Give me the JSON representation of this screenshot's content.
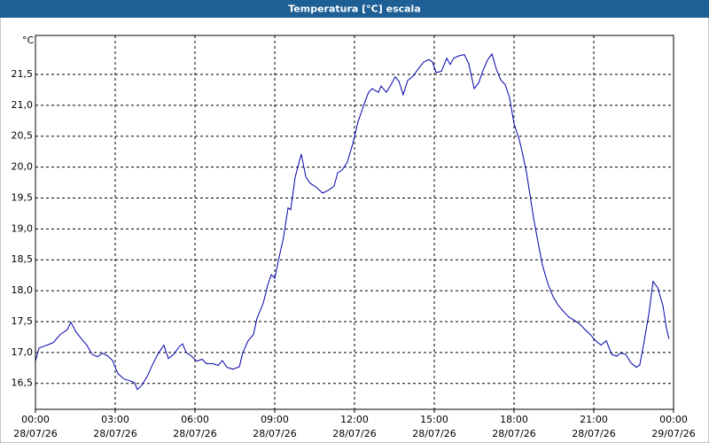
{
  "chart_data": {
    "type": "line",
    "title": "Temperatura [°C] escala",
    "y_unit": "°C",
    "x": [
      0,
      0.13,
      0.5,
      0.67,
      0.93,
      1.2,
      1.33,
      1.53,
      1.73,
      1.93,
      2.13,
      2.33,
      2.53,
      2.73,
      2.9,
      3.1,
      3.33,
      3.57,
      3.73,
      3.83,
      4.0,
      4.2,
      4.4,
      4.6,
      4.83,
      5.0,
      5.2,
      5.4,
      5.53,
      5.67,
      5.87,
      6.07,
      6.27,
      6.43,
      6.67,
      6.87,
      7.03,
      7.2,
      7.43,
      7.67,
      7.8,
      8.0,
      8.2,
      8.33,
      8.57,
      8.73,
      8.87,
      9.0,
      9.17,
      9.33,
      9.5,
      9.6,
      9.77,
      10.0,
      10.17,
      10.33,
      10.57,
      10.8,
      11.0,
      11.23,
      11.37,
      11.53,
      11.73,
      11.93,
      12.13,
      12.33,
      12.53,
      12.67,
      12.77,
      12.9,
      13.0,
      13.2,
      13.37,
      13.53,
      13.67,
      13.83,
      14.0,
      14.2,
      14.4,
      14.6,
      14.8,
      14.93,
      15.07,
      15.27,
      15.47,
      15.6,
      15.73,
      15.93,
      16.13,
      16.3,
      16.5,
      16.67,
      16.83,
      17.0,
      17.17,
      17.33,
      17.5,
      17.67,
      17.83,
      18.0,
      18.2,
      18.33,
      18.47,
      18.6,
      18.73,
      18.87,
      19.07,
      19.27,
      19.47,
      19.67,
      19.87,
      20.07,
      20.27,
      20.47,
      20.67,
      20.87,
      21.07,
      21.27,
      21.47,
      21.67,
      21.87,
      22.0,
      22.2,
      22.4,
      22.6,
      22.73,
      22.87,
      23.07,
      23.23,
      23.4,
      23.6,
      23.73,
      23.83
    ],
    "series": [
      {
        "color": "#0000aa",
        "values": [
          16.86,
          17.07,
          17.13,
          17.16,
          17.29,
          17.37,
          17.49,
          17.33,
          17.22,
          17.12,
          16.97,
          16.93,
          16.99,
          16.94,
          16.87,
          16.66,
          16.57,
          16.54,
          16.51,
          16.4,
          16.47,
          16.61,
          16.8,
          16.97,
          17.12,
          16.9,
          16.97,
          17.09,
          17.14,
          17.0,
          16.94,
          16.86,
          16.89,
          16.82,
          16.82,
          16.79,
          16.87,
          16.76,
          16.73,
          16.77,
          17.0,
          17.19,
          17.29,
          17.55,
          17.8,
          18.08,
          18.26,
          18.2,
          18.55,
          18.86,
          19.34,
          19.31,
          19.84,
          20.21,
          19.84,
          19.74,
          19.67,
          19.58,
          19.62,
          19.69,
          19.91,
          19.95,
          20.08,
          20.37,
          20.73,
          20.98,
          21.21,
          21.27,
          21.24,
          21.21,
          21.31,
          21.21,
          21.33,
          21.46,
          21.39,
          21.17,
          21.4,
          21.47,
          21.59,
          21.7,
          21.74,
          21.7,
          21.53,
          21.55,
          21.76,
          21.66,
          21.76,
          21.8,
          21.82,
          21.67,
          21.27,
          21.36,
          21.56,
          21.73,
          21.83,
          21.59,
          21.41,
          21.33,
          21.13,
          20.7,
          20.44,
          20.2,
          19.91,
          19.55,
          19.19,
          18.86,
          18.41,
          18.12,
          17.9,
          17.76,
          17.66,
          17.57,
          17.52,
          17.46,
          17.37,
          17.29,
          17.19,
          17.12,
          17.19,
          16.97,
          16.94,
          16.99,
          16.97,
          16.83,
          16.76,
          16.8,
          17.12,
          17.62,
          18.15,
          18.05,
          17.76,
          17.4,
          17.22
        ]
      }
    ],
    "xlim": [
      0,
      24
    ],
    "xticks": [
      {
        "value": 0,
        "label": "00:00",
        "date": "28/07/26"
      },
      {
        "value": 3,
        "label": "03:00",
        "date": "28/07/26"
      },
      {
        "value": 6,
        "label": "06:00",
        "date": "28/07/26"
      },
      {
        "value": 9,
        "label": "09:00",
        "date": "28/07/26"
      },
      {
        "value": 12,
        "label": "12:00",
        "date": "28/07/26"
      },
      {
        "value": 15,
        "label": "15:00",
        "date": "28/07/26"
      },
      {
        "value": 18,
        "label": "18:00",
        "date": "28/07/26"
      },
      {
        "value": 21,
        "label": "21:00",
        "date": "28/07/26"
      },
      {
        "value": 24,
        "label": "00:00",
        "date": "29/07/26"
      }
    ],
    "ylim": [
      16.08,
      22.13
    ],
    "yticks": [
      {
        "value": 16.5,
        "label": "16,5"
      },
      {
        "value": 17,
        "label": "17,0"
      },
      {
        "value": 17.5,
        "label": "17,5"
      },
      {
        "value": 18,
        "label": "18,0"
      },
      {
        "value": 18.5,
        "label": "18,5"
      },
      {
        "value": 19,
        "label": "19,0"
      },
      {
        "value": 19.5,
        "label": "19,5"
      },
      {
        "value": 20,
        "label": "20,0"
      },
      {
        "value": 20.5,
        "label": "20,5"
      },
      {
        "value": 21,
        "label": "21,0"
      },
      {
        "value": 21.5,
        "label": "21,5"
      }
    ],
    "grid": true
  }
}
